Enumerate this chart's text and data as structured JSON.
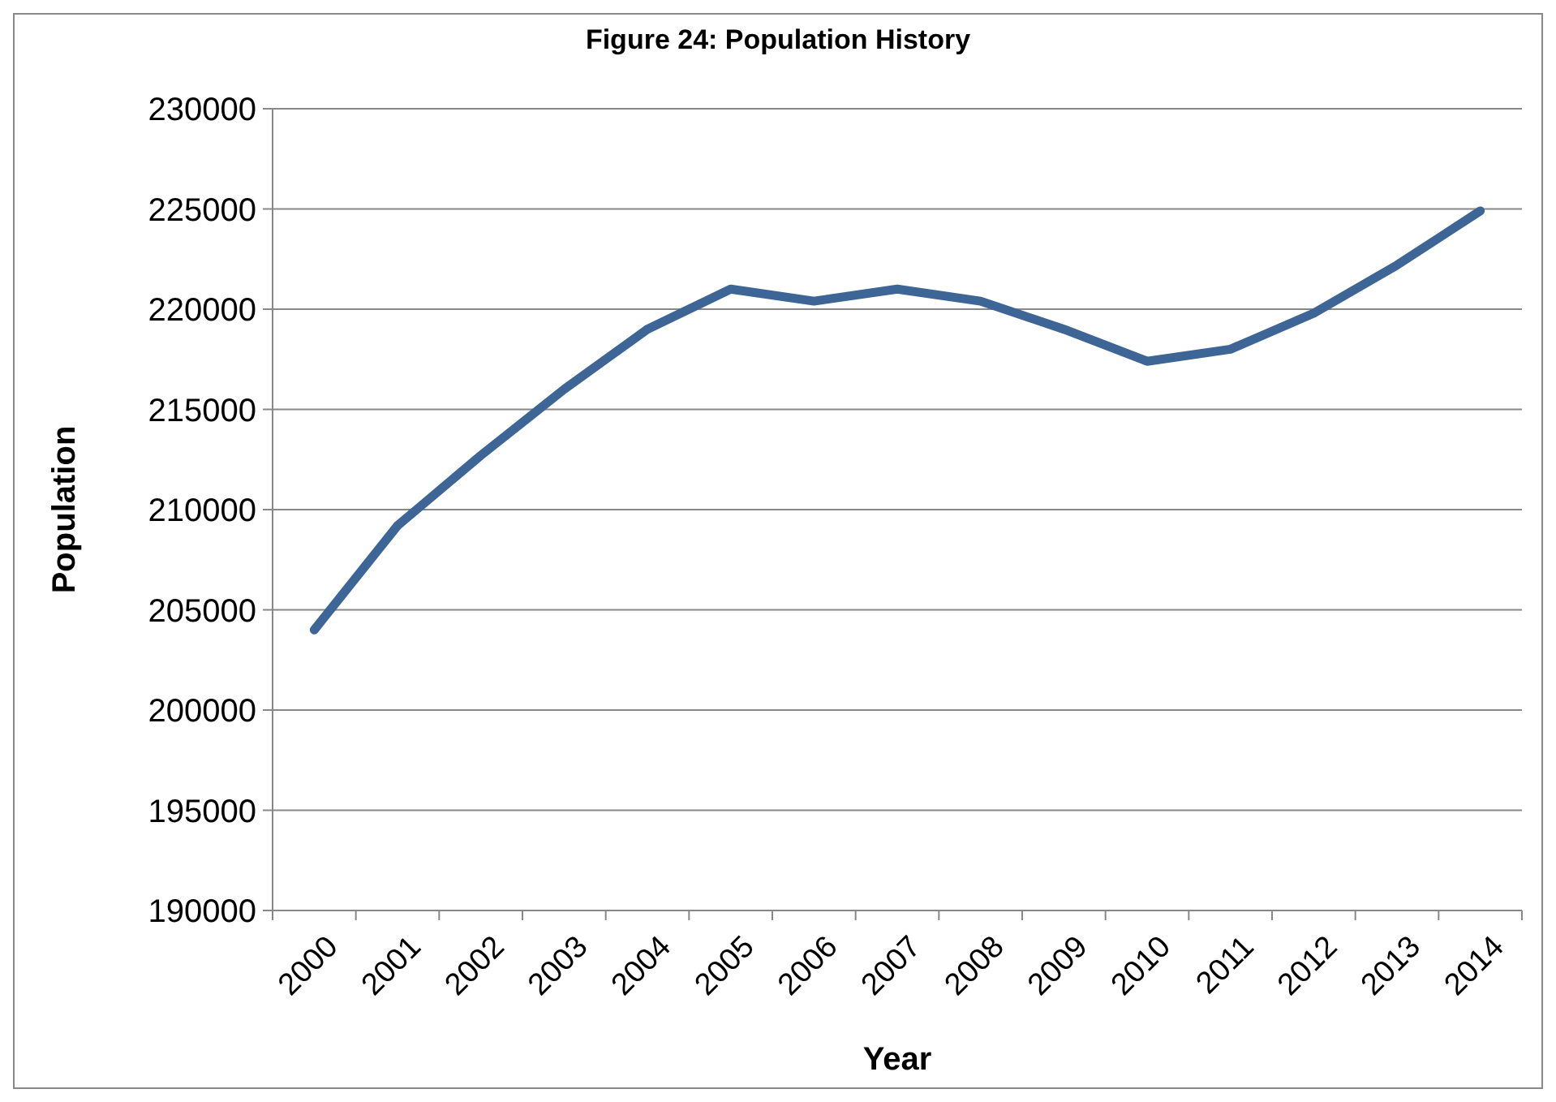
{
  "chart_data": {
    "type": "line",
    "title": "Figure 24: Population History",
    "xlabel": "Year",
    "ylabel": "Population",
    "categories": [
      "2000",
      "2001",
      "2002",
      "2003",
      "2004",
      "2005",
      "2006",
      "2007",
      "2008",
      "2009",
      "2010",
      "2011",
      "2012",
      "2013",
      "2014"
    ],
    "series": [
      {
        "color": "#3d6596",
        "values": [
          204000,
          209200,
          212700,
          216000,
          219000,
          221000,
          220400,
          221000,
          220400,
          219000,
          217400,
          218000,
          219800,
          222200,
          224900
        ]
      }
    ],
    "ylim": [
      190000,
      230000
    ],
    "yticks": [
      190000,
      195000,
      200000,
      205000,
      210000,
      215000,
      220000,
      225000,
      230000
    ],
    "grid": "y",
    "marker": "none",
    "line_style": "solid"
  }
}
